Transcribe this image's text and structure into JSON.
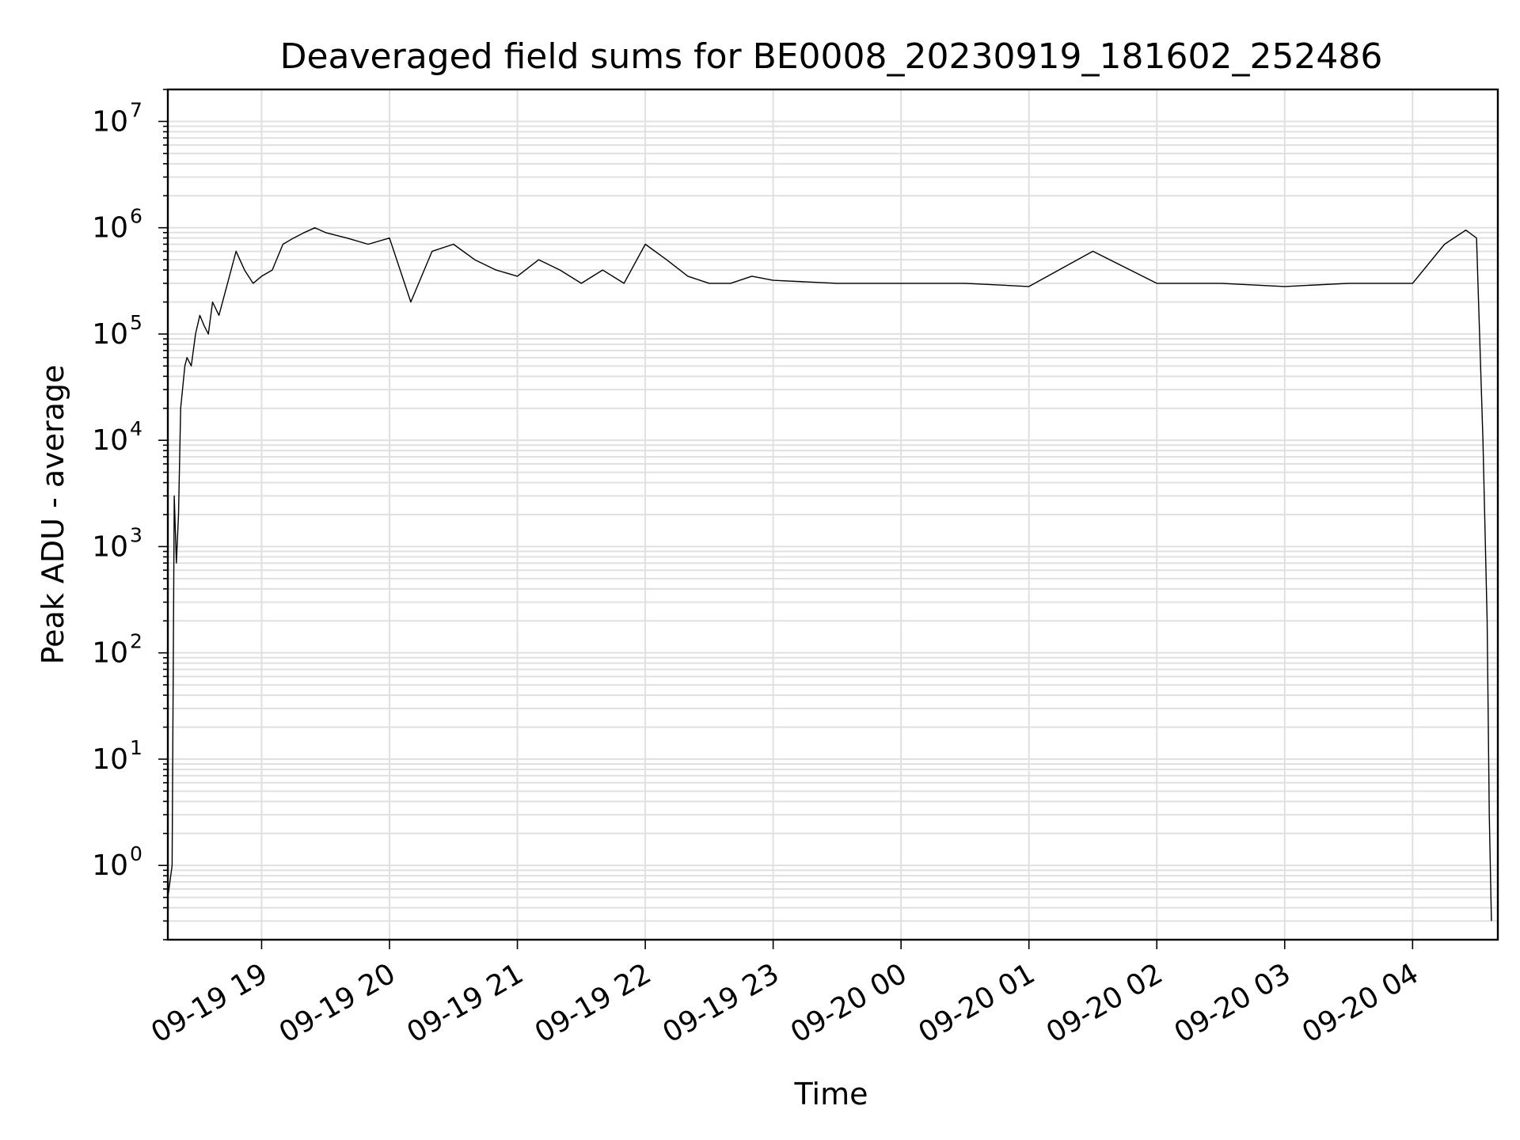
{
  "chart_data": {
    "type": "line",
    "title": "Deaveraged field sums for BE0008_20230919_181602_252486",
    "xlabel": "Time",
    "ylabel": "Peak ADU - average",
    "y_scale": "log",
    "ylim": [
      0.2,
      20000000
    ],
    "xlim": [
      "2023-09-19 18:16",
      "2023-09-20 04:40"
    ],
    "grid": "on (major and minor)",
    "legend": "none",
    "series_color": "#000000",
    "x_ticks": [
      {
        "value": "2023-09-19 19:00",
        "label": "09-19 19"
      },
      {
        "value": "2023-09-19 20:00",
        "label": "09-19 20"
      },
      {
        "value": "2023-09-19 21:00",
        "label": "09-19 21"
      },
      {
        "value": "2023-09-19 22:00",
        "label": "09-19 22"
      },
      {
        "value": "2023-09-19 23:00",
        "label": "09-19 23"
      },
      {
        "value": "2023-09-20 00:00",
        "label": "09-20 00"
      },
      {
        "value": "2023-09-20 01:00",
        "label": "09-20 01"
      },
      {
        "value": "2023-09-20 02:00",
        "label": "09-20 02"
      },
      {
        "value": "2023-09-20 03:00",
        "label": "09-20 03"
      },
      {
        "value": "2023-09-20 04:00",
        "label": "09-20 04"
      }
    ],
    "y_ticks": [
      {
        "value": 1,
        "base": "10",
        "exp": "0"
      },
      {
        "value": 10,
        "base": "10",
        "exp": "1"
      },
      {
        "value": 100,
        "base": "10",
        "exp": "2"
      },
      {
        "value": 1000,
        "base": "10",
        "exp": "3"
      },
      {
        "value": 10000,
        "base": "10",
        "exp": "4"
      },
      {
        "value": 100000,
        "base": "10",
        "exp": "5"
      },
      {
        "value": 1000000,
        "base": "10",
        "exp": "6"
      },
      {
        "value": 10000000,
        "base": "10",
        "exp": "7"
      }
    ],
    "series": [
      {
        "x": [
          "2023-09-19 18:16",
          "2023-09-19 18:18",
          "2023-09-19 18:19",
          "2023-09-19 18:20",
          "2023-09-19 18:21",
          "2023-09-19 18:22",
          "2023-09-19 18:24",
          "2023-09-19 18:25",
          "2023-09-19 18:27",
          "2023-09-19 18:29",
          "2023-09-19 18:31",
          "2023-09-19 18:33",
          "2023-09-19 18:35",
          "2023-09-19 18:37",
          "2023-09-19 18:40",
          "2023-09-19 18:44",
          "2023-09-19 18:48",
          "2023-09-19 18:52",
          "2023-09-19 18:56",
          "2023-09-19 19:00",
          "2023-09-19 19:05",
          "2023-09-19 19:10",
          "2023-09-19 19:15",
          "2023-09-19 19:20",
          "2023-09-19 19:25",
          "2023-09-19 19:30",
          "2023-09-19 19:40",
          "2023-09-19 19:50",
          "2023-09-19 20:00",
          "2023-09-19 20:10",
          "2023-09-19 20:20",
          "2023-09-19 20:30",
          "2023-09-19 20:40",
          "2023-09-19 20:50",
          "2023-09-19 21:00",
          "2023-09-19 21:10",
          "2023-09-19 21:20",
          "2023-09-19 21:30",
          "2023-09-19 21:40",
          "2023-09-19 21:50",
          "2023-09-19 22:00",
          "2023-09-19 22:10",
          "2023-09-19 22:20",
          "2023-09-19 22:30",
          "2023-09-19 22:40",
          "2023-09-19 22:50",
          "2023-09-19 23:00",
          "2023-09-19 23:30",
          "2023-09-20 00:00",
          "2023-09-20 00:30",
          "2023-09-20 01:00",
          "2023-09-20 01:30",
          "2023-09-20 02:00",
          "2023-09-20 02:30",
          "2023-09-20 03:00",
          "2023-09-20 03:30",
          "2023-09-20 04:00",
          "2023-09-20 04:15",
          "2023-09-20 04:25",
          "2023-09-20 04:30",
          "2023-09-20 04:33",
          "2023-09-20 04:35",
          "2023-09-20 04:36",
          "2023-09-20 04:37"
        ],
        "y": [
          0.5,
          1,
          3000,
          700,
          2000,
          20000,
          50000,
          60000,
          50000,
          100000,
          150000,
          120000,
          100000,
          200000,
          150000,
          300000,
          600000,
          400000,
          300000,
          350000,
          400000,
          700000,
          800000,
          900000,
          1000000,
          900000,
          800000,
          700000,
          800000,
          200000,
          600000,
          700000,
          500000,
          400000,
          350000,
          500000,
          400000,
          300000,
          400000,
          300000,
          700000,
          500000,
          350000,
          300000,
          300000,
          350000,
          320000,
          300000,
          300000,
          300000,
          280000,
          600000,
          300000,
          300000,
          280000,
          300000,
          300000,
          700000,
          950000,
          800000,
          10000,
          200,
          3,
          0.3
        ]
      }
    ]
  }
}
